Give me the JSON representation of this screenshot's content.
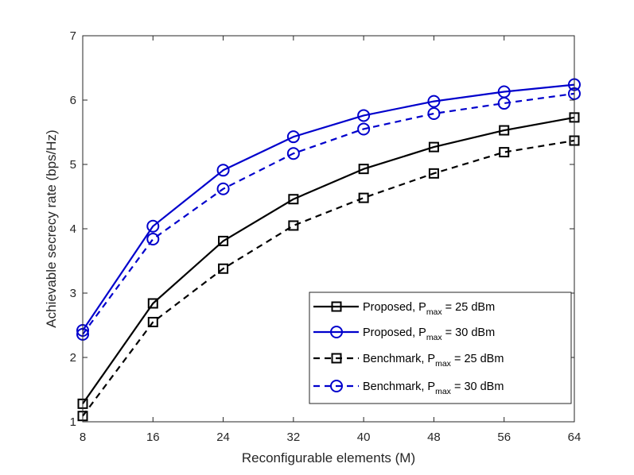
{
  "chart_data": {
    "type": "line",
    "title": "",
    "xlabel": "Reconfigurable elements (M)",
    "ylabel": "Achievable secrecy rate (bps/Hz)",
    "x": [
      8,
      16,
      24,
      32,
      40,
      48,
      56,
      64
    ],
    "xlim": [
      8,
      64
    ],
    "ylim": [
      1,
      7
    ],
    "xticks": [
      "8",
      "16",
      "24",
      "32",
      "40",
      "48",
      "56",
      "64"
    ],
    "yticks": [
      "1",
      "2",
      "3",
      "4",
      "5",
      "6",
      "7"
    ],
    "grid": false,
    "legend_position": "bottom-right",
    "series": [
      {
        "name": "Proposed, P_max = 25 dBm",
        "legend_main": "Proposed, P",
        "legend_sub": "max",
        "legend_tail": " = 25 dBm",
        "color": "#000000",
        "line_style": "solid",
        "marker": "square",
        "values": [
          1.28,
          2.84,
          3.81,
          4.46,
          4.93,
          5.27,
          5.53,
          5.73
        ]
      },
      {
        "name": "Proposed, P_max = 30 dBm",
        "legend_main": "Proposed, P",
        "legend_sub": "max",
        "legend_tail": " = 30 dBm",
        "color": "#0000cc",
        "line_style": "solid",
        "marker": "circle",
        "values": [
          2.42,
          4.04,
          4.91,
          5.43,
          5.76,
          5.98,
          6.13,
          6.24
        ]
      },
      {
        "name": "Benchmark, P_max = 25 dBm",
        "legend_main": "Benchmark, P",
        "legend_sub": "max",
        "legend_tail": " = 25 dBm",
        "color": "#000000",
        "line_style": "dashed",
        "marker": "square",
        "values": [
          1.09,
          2.55,
          3.38,
          4.05,
          4.48,
          4.86,
          5.19,
          5.37
        ]
      },
      {
        "name": "Benchmark, P_max = 30 dBm",
        "legend_main": "Benchmark, P",
        "legend_sub": "max",
        "legend_tail": " = 30 dBm",
        "color": "#0000cc",
        "line_style": "dashed",
        "marker": "circle",
        "values": [
          2.36,
          3.84,
          4.62,
          5.17,
          5.55,
          5.79,
          5.95,
          6.1
        ]
      }
    ]
  }
}
